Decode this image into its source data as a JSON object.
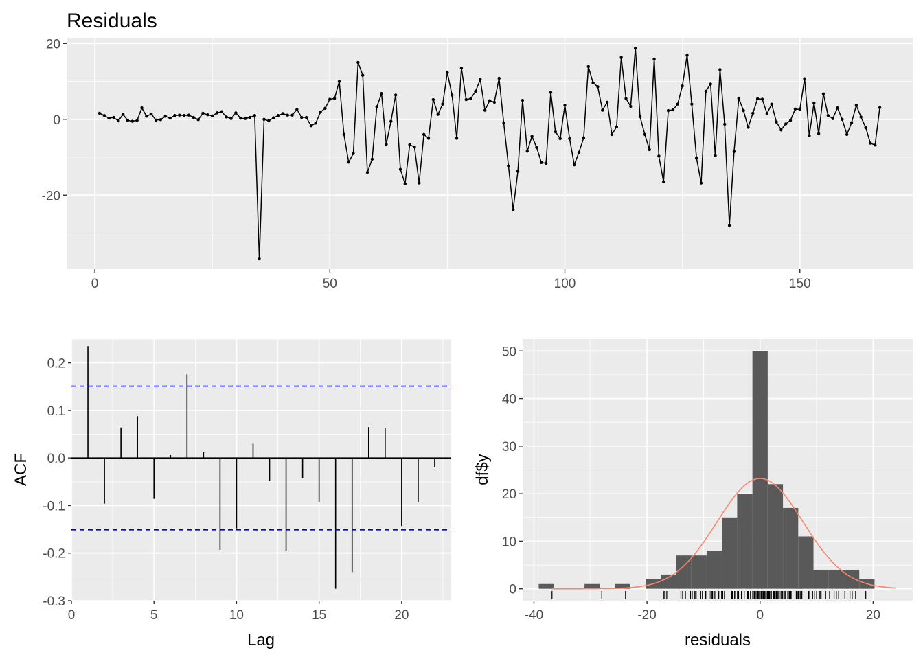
{
  "chart_data": [
    {
      "type": "line",
      "title": "Residuals",
      "xlabel": "",
      "ylabel": "",
      "xlim": [
        -6,
        174
      ],
      "ylim": [
        -39.5,
        21.5
      ],
      "xticks": [
        0,
        50,
        100,
        150
      ],
      "yticks": [
        -20,
        0,
        20
      ],
      "grid": true,
      "x_start": 1,
      "values": [
        1.6,
        1.0,
        0.3,
        0.5,
        -0.4,
        1.3,
        -0.3,
        -0.5,
        -0.3,
        3.0,
        0.8,
        1.4,
        -0.2,
        -0.1,
        0.8,
        0.3,
        1.0,
        1.1,
        1.0,
        1.1,
        0.5,
        -0.1,
        1.6,
        1.2,
        0.9,
        1.7,
        2.0,
        0.6,
        0.2,
        1.7,
        0.3,
        0.2,
        0.5,
        1.0,
        -36.8,
        0.0,
        -0.4,
        0.4,
        1.0,
        1.5,
        1.1,
        1.1,
        2.6,
        0.5,
        0.5,
        -1.7,
        -1.0,
        1.9,
        2.9,
        5.3,
        5.5,
        10.0,
        -4.0,
        -11.3,
        -9.0,
        15.0,
        11.6,
        -14.0,
        -10.5,
        3.3,
        6.8,
        -6.6,
        -0.5,
        6.4,
        -13.2,
        -17.0,
        -6.7,
        -7.3,
        -16.8,
        -4.0,
        -5.0,
        5.2,
        1.3,
        4.0,
        12.3,
        6.4,
        -5.0,
        13.5,
        5.2,
        5.5,
        7.4,
        10.5,
        2.4,
        4.9,
        4.5,
        10.8,
        -1.0,
        -12.3,
        -23.8,
        -13.7,
        5.0,
        -8.4,
        -4.5,
        -7.4,
        -11.4,
        -11.6,
        7.1,
        -3.3,
        -5.1,
        3.7,
        -5.1,
        -12.0,
        -8.7,
        -4.9,
        13.9,
        9.6,
        8.6,
        2.4,
        4.5,
        -4.0,
        -2.0,
        16.3,
        5.5,
        3.4,
        18.7,
        0.7,
        -4.0,
        -8.0,
        15.9,
        -9.7,
        -16.5,
        2.3,
        2.5,
        4.0,
        8.8,
        16.9,
        4.0,
        -10.2,
        -16.8,
        7.4,
        9.3,
        -9.6,
        13.1,
        -1.3,
        -28.0,
        -8.5,
        5.5,
        2.3,
        -2.1,
        1.6,
        5.4,
        5.3,
        1.5,
        4.0,
        -0.7,
        -2.8,
        -1.2,
        -0.3,
        2.7,
        2.6,
        10.7,
        -4.3,
        4.3,
        -3.8,
        6.7,
        1.0,
        0.2,
        3.0,
        0.0,
        -4.0,
        -0.9,
        3.7,
        0.6,
        -2.2,
        -6.3,
        -6.8,
        3.1
      ]
    },
    {
      "type": "bar",
      "title": "",
      "xlabel": "Lag",
      "ylabel": "ACF",
      "xlim": [
        0,
        23
      ],
      "ylim": [
        -0.3,
        0.25
      ],
      "xticks": [
        0,
        5,
        10,
        15,
        20
      ],
      "yticks": [
        -0.3,
        -0.2,
        -0.1,
        0.0,
        0.1,
        0.2
      ],
      "grid": true,
      "lags": [
        1,
        2,
        3,
        4,
        5,
        6,
        7,
        8,
        9,
        10,
        11,
        12,
        13,
        14,
        15,
        16,
        17,
        18,
        19,
        20,
        21,
        22
      ],
      "values": [
        0.235,
        -0.096,
        0.064,
        0.088,
        -0.086,
        0.006,
        0.176,
        0.012,
        -0.193,
        -0.148,
        0.03,
        -0.048,
        -0.196,
        -0.042,
        -0.092,
        -0.275,
        -0.24,
        0.065,
        0.063,
        -0.143,
        -0.092,
        -0.02
      ],
      "confidence_bounds": [
        0.151,
        -0.151
      ]
    },
    {
      "type": "bar",
      "title": "",
      "xlabel": "residuals",
      "ylabel": "df$y",
      "xlim": [
        -42,
        27
      ],
      "ylim": [
        -2.5,
        52.5
      ],
      "xticks": [
        -40,
        -20,
        0,
        20
      ],
      "yticks": [
        0,
        10,
        20,
        30,
        40,
        50
      ],
      "grid": true,
      "bin_width": 2.7,
      "bin_centers": [
        -37.8,
        -35.1,
        -32.4,
        -29.7,
        -27.0,
        -24.3,
        -21.6,
        -18.9,
        -16.2,
        -13.5,
        -10.8,
        -8.1,
        -5.4,
        -2.7,
        0.0,
        2.7,
        5.4,
        8.1,
        10.8,
        13.5,
        16.2,
        18.9
      ],
      "counts": [
        1,
        0,
        0,
        1,
        0,
        1,
        0,
        2,
        3,
        7,
        7,
        8,
        15,
        20,
        50,
        22,
        17,
        11,
        4,
        4,
        4,
        2
      ],
      "density_curve": {
        "color": "#F8866D",
        "mean": 0.0,
        "sd": 7.6,
        "scale": 442,
        "x_range": [
          -36.8,
          24
        ]
      },
      "rug_values": [
        -36.8,
        -28.0,
        -23.8,
        -17.0,
        -16.8,
        -16.8,
        -16.5,
        -14.0,
        -13.7,
        -13.2,
        -12.3,
        -12.0,
        -11.6,
        -11.4,
        -11.3,
        -10.5,
        -10.2,
        -9.7,
        -9.6,
        -9.0,
        -8.7,
        -8.5,
        -8.4,
        -8.0,
        -7.4,
        -7.3,
        -6.8,
        -6.7,
        -6.6,
        -6.3,
        -5.1,
        -5.1,
        -5.0,
        -5.0,
        -4.9,
        -4.5,
        -4.3,
        -4.0,
        -3.8,
        -3.3,
        -2.8,
        -2.2,
        -2.1,
        -1.7,
        -1.3,
        -1.2,
        -1.0,
        -0.9,
        -0.7,
        -0.5,
        -0.4,
        -0.3,
        -0.1,
        0.0,
        0.2,
        0.3,
        0.5,
        0.6,
        0.8,
        1.0,
        1.1,
        1.3,
        1.5,
        1.6,
        1.7,
        1.9,
        2.0,
        2.3,
        2.4,
        2.5,
        2.6,
        2.7,
        2.9,
        3.0,
        3.1,
        3.3,
        3.4,
        3.7,
        4.0,
        4.3,
        4.5,
        4.9,
        5.0,
        5.2,
        5.3,
        5.4,
        5.5,
        6.4,
        6.7,
        6.8,
        7.1,
        7.4,
        8.6,
        8.8,
        9.3,
        9.6,
        10.0,
        10.5,
        10.7,
        10.8,
        11.6,
        12.3,
        13.1,
        13.5,
        13.9,
        15.0,
        15.9,
        16.3,
        16.9,
        18.7
      ]
    }
  ]
}
